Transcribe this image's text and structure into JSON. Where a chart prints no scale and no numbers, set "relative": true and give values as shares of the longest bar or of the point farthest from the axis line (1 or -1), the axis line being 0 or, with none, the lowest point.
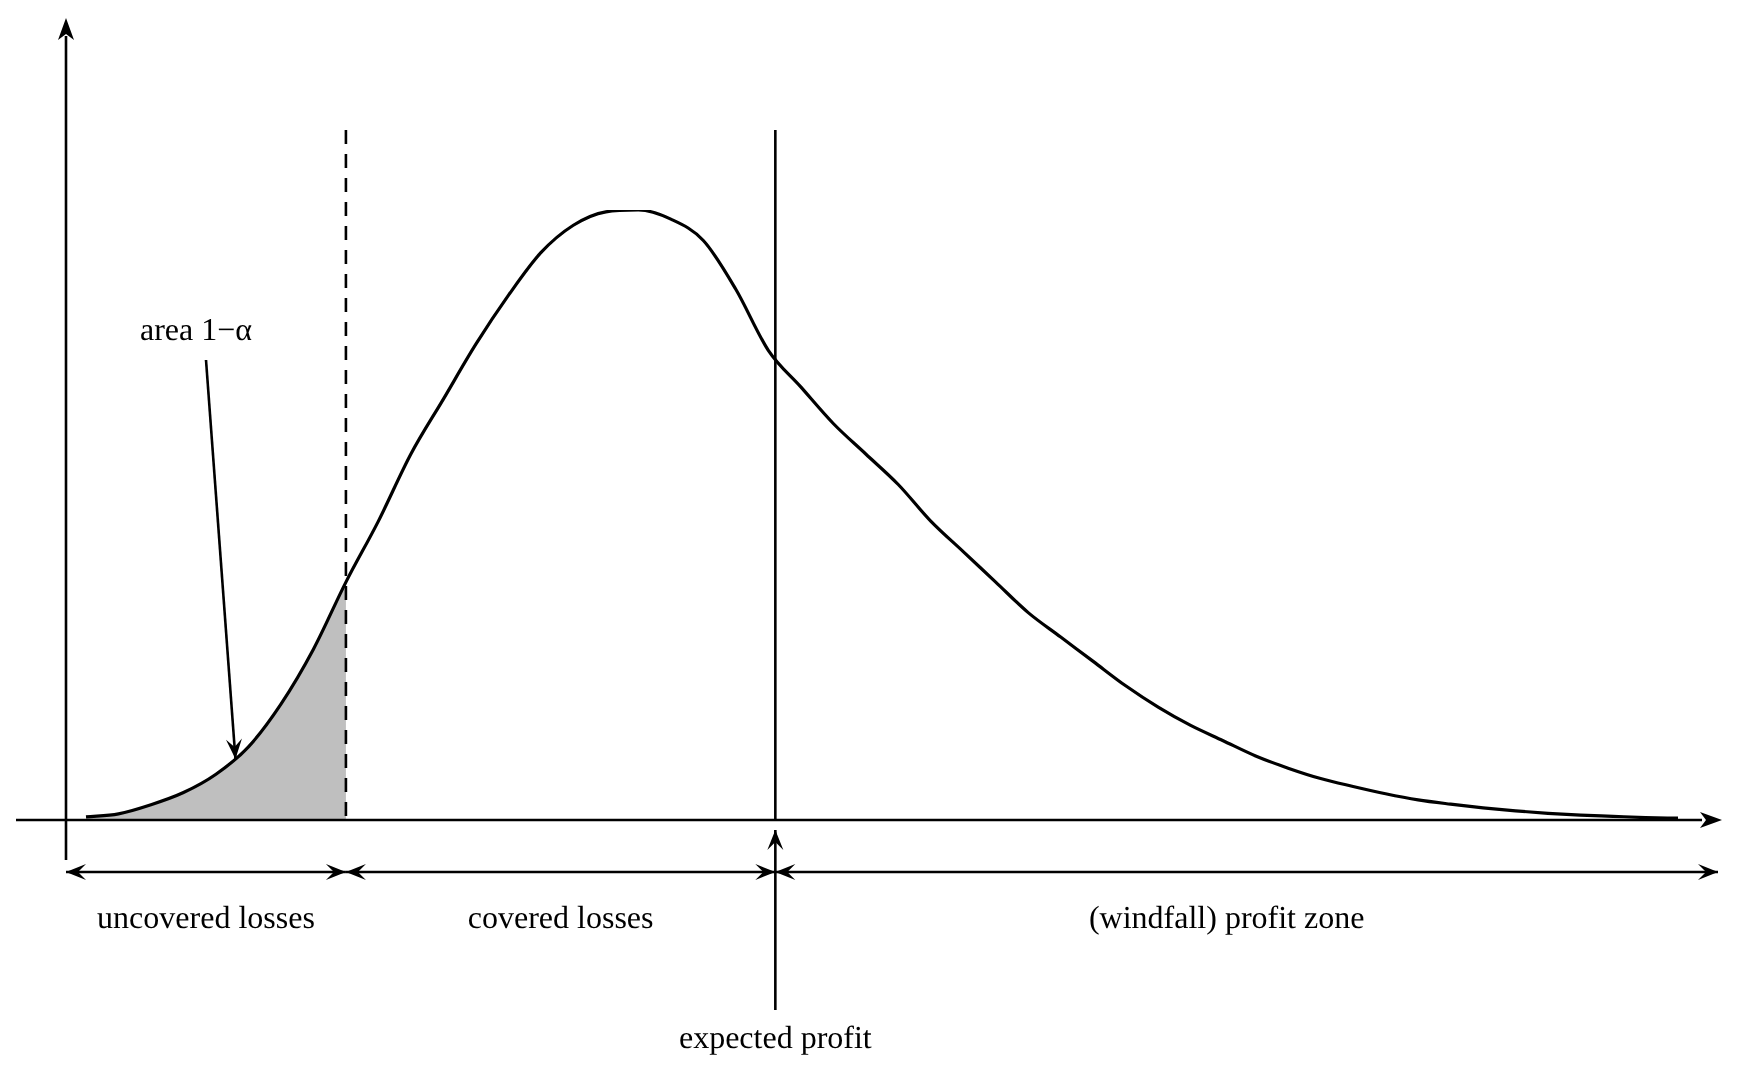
{
  "chart_data": {
    "type": "line",
    "relative": true,
    "legend": false,
    "marker": "none",
    "categories": [
      null,
      null,
      null,
      null,
      null,
      null,
      null,
      null,
      null,
      null,
      null,
      null,
      null,
      null,
      null,
      null,
      null,
      null,
      null,
      null,
      null,
      null,
      null,
      null,
      null,
      null,
      null,
      null,
      null,
      null,
      null,
      null,
      null,
      null,
      null,
      null,
      null,
      null,
      null,
      null,
      null,
      null,
      null,
      null,
      null,
      null,
      null,
      null,
      null,
      null
    ],
    "series": [
      {
        "color": "#000000",
        "values": [
          0.005,
          0.01,
          0.025,
          0.045,
          0.075,
          0.12,
          0.19,
          0.28,
          0.39,
          0.49,
          0.6,
          0.69,
          0.78,
          0.86,
          0.93,
          0.975,
          0.997,
          1,
          0.985,
          0.95,
          0.87,
          0.77,
          0.71,
          0.65,
          0.6,
          0.55,
          0.49,
          0.44,
          0.39,
          0.34,
          0.3,
          0.26,
          0.22,
          0.185,
          0.155,
          0.13,
          0.105,
          0.085,
          0.068,
          0.055,
          0.043,
          0.033,
          0.026,
          0.02,
          0.015,
          0.011,
          0.008,
          0.006,
          0.004,
          0.003
        ]
      },
      {
        "type": "area",
        "color": "#000000",
        "values": [
          0.005,
          0.01,
          0.025,
          0.045,
          0.075,
          0.12,
          0.19,
          0.28,
          0.39,
          null,
          null,
          null,
          null,
          null,
          null,
          null,
          null,
          null,
          null,
          null,
          null,
          null,
          null,
          null,
          null,
          null,
          null,
          null,
          null,
          null,
          null,
          null,
          null,
          null,
          null,
          null,
          null,
          null,
          null,
          null,
          null,
          null,
          null,
          null,
          null,
          null,
          null,
          null,
          null,
          null
        ]
      }
    ],
    "annotations": [
      "area 1−α",
      "uncovered losses",
      "covered losses",
      "(windfall) profit zone",
      "expected profit"
    ]
  }
}
